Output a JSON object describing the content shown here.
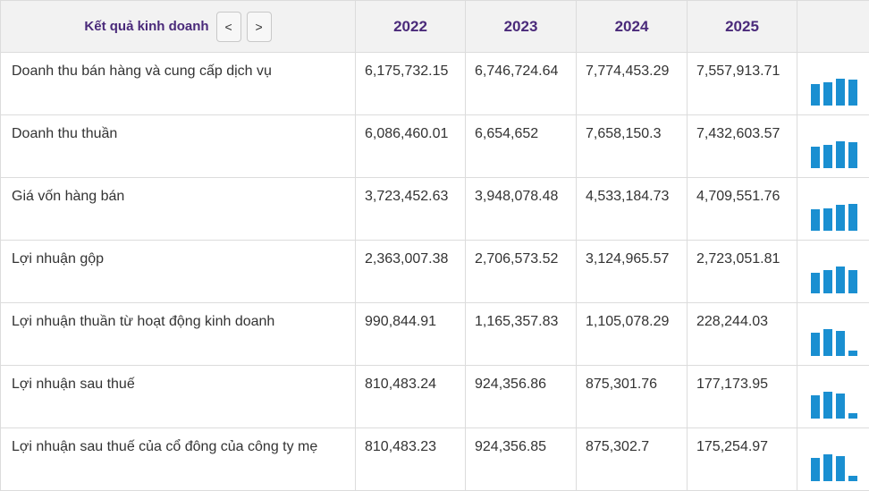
{
  "header": {
    "title": "Kết quả kinh doanh",
    "prev_label": "<",
    "next_label": ">",
    "years": [
      "2022",
      "2023",
      "2024",
      "2025"
    ]
  },
  "colors": {
    "bar": "#1a8fd1",
    "header_text": "#4a2a7a",
    "header_bg": "#f2f2f2"
  },
  "rows": [
    {
      "label": "Doanh thu bán hàng và cung cấp dịch vụ",
      "values": [
        "6,175,732.15",
        "6,746,724.64",
        "7,774,453.29",
        "7,557,913.71"
      ],
      "numbers": [
        6175732.15,
        6746724.64,
        7774453.29,
        7557913.71
      ]
    },
    {
      "label": "Doanh thu thuần",
      "values": [
        "6,086,460.01",
        "6,654,652",
        "7,658,150.3",
        "7,432,603.57"
      ],
      "numbers": [
        6086460.01,
        6654652,
        7658150.3,
        7432603.57
      ]
    },
    {
      "label": "Giá vốn hàng bán",
      "values": [
        "3,723,452.63",
        "3,948,078.48",
        "4,533,184.73",
        "4,709,551.76"
      ],
      "numbers": [
        3723452.63,
        3948078.48,
        4533184.73,
        4709551.76
      ]
    },
    {
      "label": "Lợi nhuận gộp",
      "values": [
        "2,363,007.38",
        "2,706,573.52",
        "3,124,965.57",
        "2,723,051.81"
      ],
      "numbers": [
        2363007.38,
        2706573.52,
        3124965.57,
        2723051.81
      ]
    },
    {
      "label": "Lợi nhuận thuần từ hoạt động kinh doanh",
      "values": [
        "990,844.91",
        "1,165,357.83",
        "1,105,078.29",
        "228,244.03"
      ],
      "numbers": [
        990844.91,
        1165357.83,
        1105078.29,
        228244.03
      ]
    },
    {
      "label": "Lợi nhuận sau thuế",
      "values": [
        "810,483.24",
        "924,356.86",
        "875,301.76",
        "177,173.95"
      ],
      "numbers": [
        810483.24,
        924356.86,
        875301.76,
        177173.95
      ]
    },
    {
      "label": "Lợi nhuận sau thuế của cổ đông của công ty mẹ",
      "values": [
        "810,483.23",
        "924,356.85",
        "875,302.7",
        "175,254.97"
      ],
      "numbers": [
        810483.23,
        924356.85,
        875302.7,
        175254.97
      ]
    }
  ]
}
